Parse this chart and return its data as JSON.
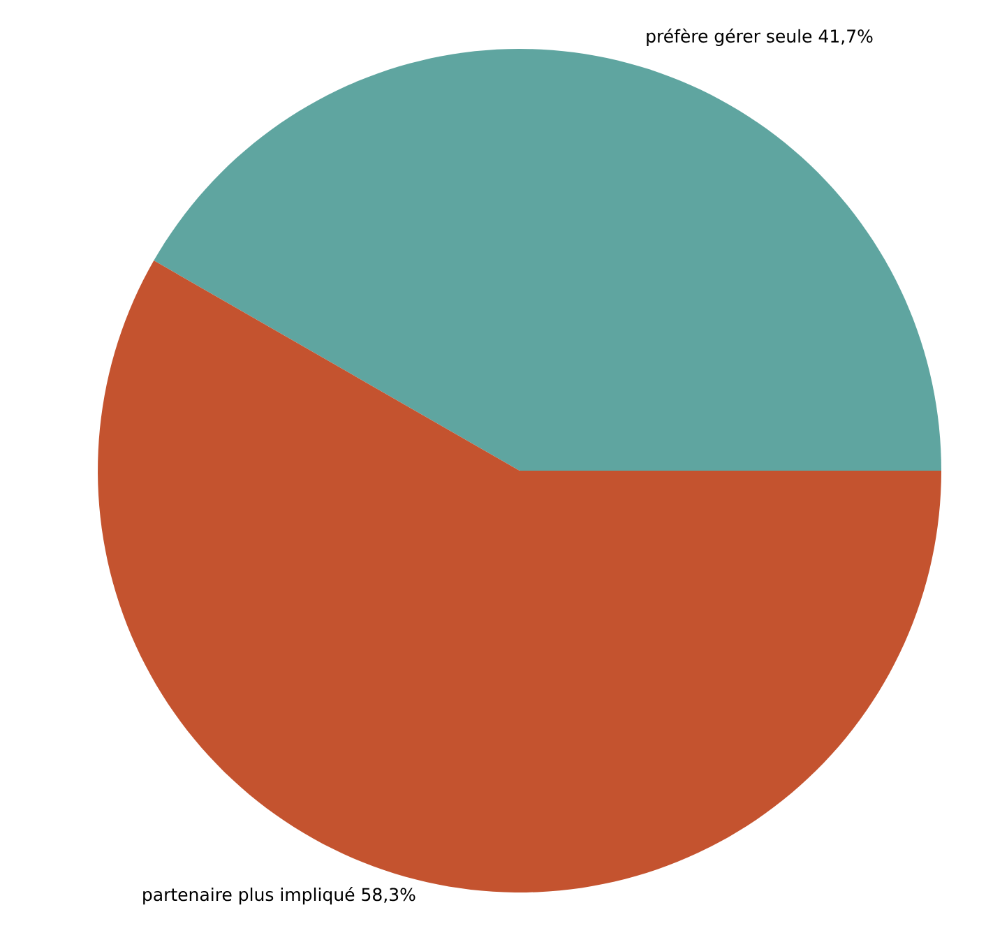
{
  "chart_data": {
    "type": "pie",
    "categories": [
      "préfère gérer seule",
      "partenaire plus impliqué"
    ],
    "values": [
      41.7,
      58.3
    ],
    "value_labels": [
      "41,7%",
      "58,3%"
    ],
    "colors": [
      "#5fa5a0",
      "#c4532f"
    ]
  }
}
